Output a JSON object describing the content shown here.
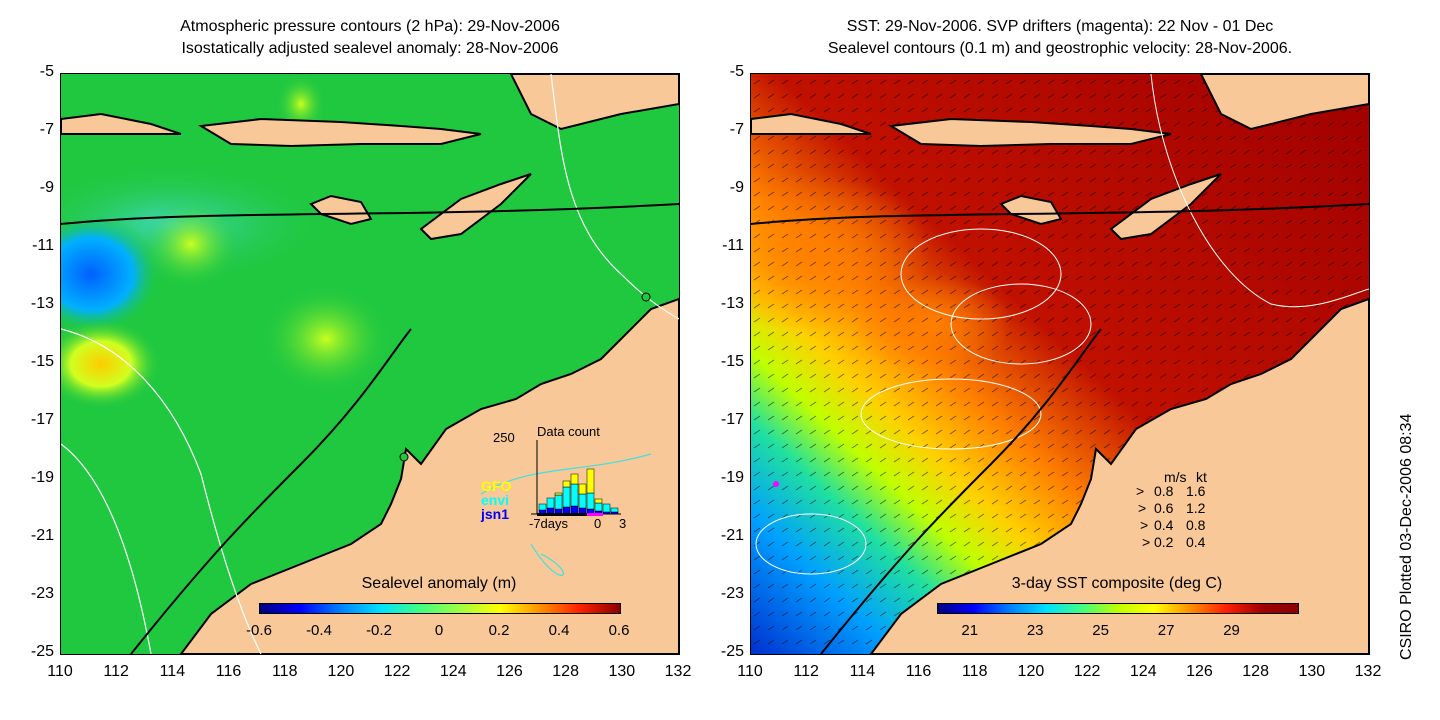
{
  "left_panel": {
    "title_line1": "Atmospheric pressure contours (2 hPa): 29-Nov-2006",
    "title_line2": "Isostatically adjusted sealevel anomaly: 28-Nov-2006",
    "colorbar": {
      "title": "Sealevel anomaly (m)",
      "ticks": [
        "-0.6",
        "-0.4",
        "-0.2",
        "0",
        "0.2",
        "0.4",
        "0.6"
      ]
    },
    "histogram": {
      "title": "Data count",
      "ymax_label": "250",
      "x_labels": [
        "-7days",
        "0",
        "3"
      ],
      "legend": [
        {
          "label": "GFO",
          "color": "#ffff00"
        },
        {
          "label": "envi",
          "color": "#00ffff"
        },
        {
          "label": "jsn1",
          "color": "#0000ff"
        }
      ]
    }
  },
  "right_panel": {
    "title_line1": "SST: 29-Nov-2006. SVP drifters (magenta): 22 Nov - 01 Dec",
    "title_line2": "Sealevel contours (0.1 m) and geostrophic velocity: 28-Nov-2006.",
    "colorbar": {
      "title": "3-day SST composite (deg C)",
      "ticks": [
        "21",
        "23",
        "25",
        "27",
        "29"
      ]
    },
    "speed_legend": {
      "header_ms": "m/s",
      "header_kt": "kt",
      "rows": [
        {
          "ms": "0.8",
          "kt": "1.6"
        },
        {
          "ms": "0.6",
          "kt": "1.2"
        },
        {
          "ms": "0.4",
          "kt": "0.8"
        },
        {
          "ms": "0.2",
          "kt": "0.4"
        }
      ]
    }
  },
  "axes": {
    "y_ticks": [
      "-5",
      "-7",
      "-9",
      "-11",
      "-13",
      "-15",
      "-17",
      "-19",
      "-21",
      "-23",
      "-25"
    ],
    "x_ticks": [
      "110",
      "112",
      "114",
      "116",
      "118",
      "120",
      "122",
      "124",
      "126",
      "128",
      "130",
      "132"
    ],
    "lon_range": [
      110,
      132
    ],
    "lat_range": [
      -25,
      -5
    ]
  },
  "credit": "CSIRO Plotted 03-Dec-2006 08:34",
  "colors": {
    "land": "#f8c898",
    "sla_background": "#20c840",
    "sst_warm": "#a00000",
    "drifter": "#ff00ff"
  }
}
